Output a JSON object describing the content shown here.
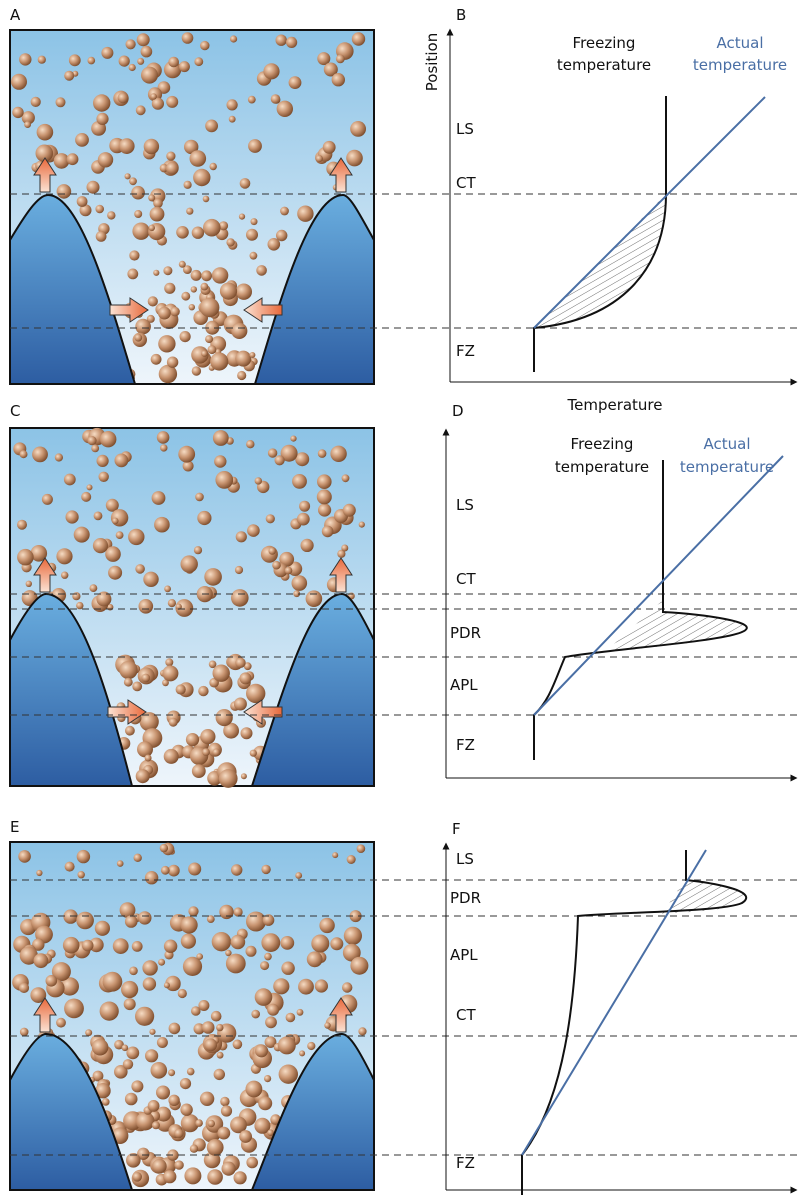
{
  "panels": [
    {
      "label": "A"
    },
    {
      "label": "C"
    },
    {
      "label": "E"
    }
  ],
  "graphs": [
    {
      "label": "B",
      "freezing_label": [
        "Freezing",
        "temperature"
      ],
      "actual_label": [
        "Actual",
        "temperature"
      ],
      "y_axis": "Position",
      "x_axis": "Temperature",
      "zones": [
        "LS",
        "CT",
        "FZ"
      ]
    },
    {
      "label": "D",
      "freezing_label": [
        "Freezing",
        "temperature"
      ],
      "actual_label": [
        "Actual",
        "temperature"
      ],
      "zones": [
        "LS",
        "CT",
        "PDR",
        "APL",
        "FZ"
      ]
    },
    {
      "label": "F",
      "zones": [
        "LS",
        "PDR",
        "APL",
        "CT",
        "FZ"
      ]
    }
  ]
}
